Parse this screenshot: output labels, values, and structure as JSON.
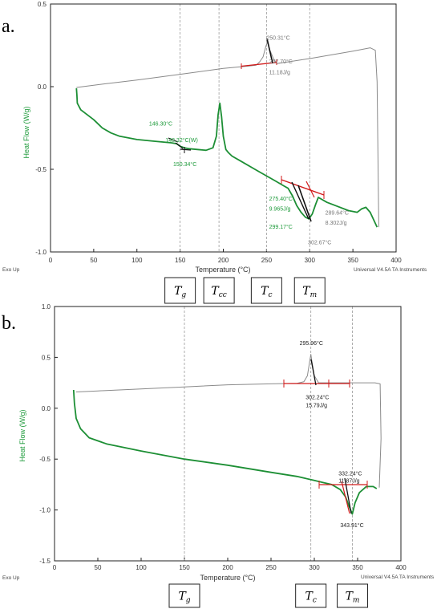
{
  "figure": {
    "panels": [
      {
        "letter": "a.",
        "exo_label": "Exo Up",
        "instrument": "Universal V4.5A TA Instruments",
        "markers": [
          {
            "id": "tg",
            "base": "T",
            "sub": "g",
            "x": 150
          },
          {
            "id": "tcc",
            "base": "T",
            "sub": "cc",
            "x": 195
          },
          {
            "id": "tc",
            "base": "T",
            "sub": "c",
            "x": 250
          },
          {
            "id": "tm",
            "base": "T",
            "sub": "m",
            "x": 300
          }
        ],
        "annotations": [
          {
            "text": "250.31°C",
            "x": 250,
            "y": 0.285,
            "color": "gray",
            "size": 7
          },
          {
            "text": "257.70°C",
            "x": 253,
            "y": 0.14,
            "color": "gray",
            "size": 7
          },
          {
            "text": "11.18J/g",
            "x": 253,
            "y": 0.075,
            "color": "gray",
            "size": 7
          },
          {
            "text": "146.30°C",
            "x": 114,
            "y": -0.235,
            "color": "green",
            "size": 7
          },
          {
            "text": "148.32°C(W)",
            "x": 133,
            "y": -0.335,
            "color": "green",
            "size": 7
          },
          {
            "text": "150.34°C",
            "x": 142,
            "y": -0.48,
            "color": "green",
            "size": 7
          },
          {
            "text": "275.40°C",
            "x": 253,
            "y": -0.69,
            "color": "green",
            "size": 7
          },
          {
            "text": "9.965J/g",
            "x": 253,
            "y": -0.75,
            "color": "green",
            "size": 7
          },
          {
            "text": "299.17°C",
            "x": 253,
            "y": -0.86,
            "color": "green",
            "size": 7
          },
          {
            "text": "289.64°C",
            "x": 318,
            "y": -0.775,
            "color": "gray",
            "size": 7
          },
          {
            "text": "8.302J/g",
            "x": 318,
            "y": -0.835,
            "color": "gray",
            "size": 7
          },
          {
            "text": "302.67°C",
            "x": 298,
            "y": -0.955,
            "color": "gray",
            "size": 7
          }
        ]
      },
      {
        "letter": "b.",
        "exo_label": "Exo Up",
        "instrument": "Universal V4.5A TA Instruments",
        "markers": [
          {
            "id": "tg",
            "base": "T",
            "sub": "g",
            "x": 150
          },
          {
            "id": "tc",
            "base": "T",
            "sub": "c",
            "x": 296
          },
          {
            "id": "tm",
            "base": "T",
            "sub": "m",
            "x": 344
          }
        ],
        "annotations": [
          {
            "text": "295.96°C",
            "x": 283,
            "y": 0.62,
            "color": "dark",
            "size": 8
          },
          {
            "text": "302.24°C",
            "x": 290,
            "y": 0.09,
            "color": "dark",
            "size": 8
          },
          {
            "text": "15.79J/g",
            "x": 290,
            "y": 0.01,
            "color": "dark",
            "size": 8
          },
          {
            "text": "332.24°C",
            "x": 328,
            "y": -0.66,
            "color": "dark",
            "size": 8
          },
          {
            "text": "11.87J/g",
            "x": 328,
            "y": -0.73,
            "color": "dark",
            "size": 8
          },
          {
            "text": "343.91°C",
            "x": 330,
            "y": -1.17,
            "color": "dark",
            "size": 8
          }
        ]
      }
    ]
  },
  "chart_data": [
    {
      "type": "line",
      "title": "",
      "xlabel": "Temperature (°C)",
      "ylabel": "Heat Flow (W/g)",
      "xlim": [
        0,
        400
      ],
      "ylim": [
        -1.0,
        0.5
      ],
      "xticks": [
        0,
        50,
        100,
        150,
        200,
        250,
        300,
        350,
        400
      ],
      "yticks": [
        -1.0,
        -0.5,
        0.0,
        0.5
      ],
      "ytick_labels": [
        "-1.0",
        "-0.5",
        "0.0",
        "0.5"
      ],
      "grid": false,
      "colors": {
        "heating": "#1d8f35",
        "cooling": "#8a8a8a",
        "markers": "#d11a1a"
      },
      "series": [
        {
          "name": "heating",
          "x": [
            30,
            30.5,
            31,
            35,
            50,
            60,
            70,
            80,
            100,
            120,
            140,
            146,
            150,
            155,
            160,
            170,
            180,
            188,
            192,
            194,
            196,
            198,
            200,
            203,
            206,
            210,
            220,
            240,
            260,
            270,
            275,
            280,
            285,
            290,
            295,
            299,
            303,
            307,
            310,
            320,
            330,
            345,
            355,
            360,
            365,
            370,
            378
          ],
          "y": [
            -0.01,
            -0.05,
            -0.1,
            -0.14,
            -0.2,
            -0.25,
            -0.28,
            -0.3,
            -0.32,
            -0.33,
            -0.34,
            -0.345,
            -0.36,
            -0.37,
            -0.375,
            -0.38,
            -0.385,
            -0.37,
            -0.3,
            -0.17,
            -0.1,
            -0.18,
            -0.3,
            -0.38,
            -0.4,
            -0.42,
            -0.45,
            -0.51,
            -0.57,
            -0.6,
            -0.615,
            -0.66,
            -0.72,
            -0.76,
            -0.79,
            -0.8,
            -0.77,
            -0.71,
            -0.67,
            -0.7,
            -0.72,
            -0.75,
            -0.76,
            -0.74,
            -0.73,
            -0.76,
            -0.85
          ]
        },
        {
          "name": "cooling",
          "x": [
            380,
            378,
            376,
            370,
            350,
            300,
            262,
            258,
            254,
            251,
            249,
            246,
            242,
            238,
            230,
            200,
            150,
            100,
            60,
            30
          ],
          "y": [
            -0.85,
            0.03,
            0.22,
            0.235,
            0.215,
            0.17,
            0.14,
            0.17,
            0.22,
            0.27,
            0.24,
            0.18,
            0.15,
            0.13,
            0.125,
            0.11,
            0.075,
            0.04,
            0.015,
            -0.005
          ]
        }
      ],
      "annotations": [
        "250.31°C",
        "257.70°C",
        "11.18J/g",
        "146.30°C",
        "148.32°C(W)",
        "150.34°C",
        "275.40°C",
        "9.965J/g",
        "299.17°C",
        "289.64°C",
        "8.302J/g",
        "302.67°C"
      ]
    },
    {
      "type": "line",
      "title": "",
      "xlabel": "Temperature (°C)",
      "ylabel": "Heat Flow (W/g)",
      "xlim": [
        0,
        400
      ],
      "ylim": [
        -1.5,
        1.0
      ],
      "xticks": [
        0,
        50,
        100,
        150,
        200,
        250,
        300,
        350,
        400
      ],
      "yticks": [
        -1.5,
        -1.0,
        -0.5,
        0.0,
        0.5,
        1.0
      ],
      "ytick_labels": [
        "-1.5",
        "-1.0",
        "-0.5",
        "0.0",
        "0.5",
        "1.0"
      ],
      "grid": false,
      "colors": {
        "heating": "#1d8f35",
        "cooling": "#8a8a8a",
        "markers": "#d11a1a"
      },
      "series": [
        {
          "name": "heating",
          "x": [
            22,
            23,
            25,
            30,
            40,
            60,
            100,
            150,
            200,
            250,
            280,
            300,
            310,
            320,
            330,
            336,
            340,
            343.9,
            347,
            352,
            360,
            368,
            372
          ],
          "y": [
            0.18,
            0.05,
            -0.1,
            -0.2,
            -0.29,
            -0.35,
            -0.42,
            -0.5,
            -0.56,
            -0.63,
            -0.67,
            -0.71,
            -0.73,
            -0.75,
            -0.8,
            -0.87,
            -0.96,
            -1.04,
            -0.93,
            -0.83,
            -0.77,
            -0.77,
            -0.79
          ]
        },
        {
          "name": "cooling",
          "x": [
            375,
            377,
            376,
            370,
            350,
            330,
            312,
            305,
            300,
            297,
            296,
            295,
            292,
            288,
            280,
            250,
            200,
            150,
            100,
            50,
            25
          ],
          "y": [
            -0.78,
            -0.3,
            0.24,
            0.25,
            0.25,
            0.25,
            0.25,
            0.25,
            0.32,
            0.47,
            0.53,
            0.48,
            0.32,
            0.26,
            0.245,
            0.24,
            0.23,
            0.21,
            0.19,
            0.17,
            0.16
          ]
        }
      ],
      "annotations": [
        "295.96°C",
        "302.24°C",
        "15.79J/g",
        "332.24°C",
        "11.87J/g",
        "343.91°C"
      ]
    }
  ]
}
